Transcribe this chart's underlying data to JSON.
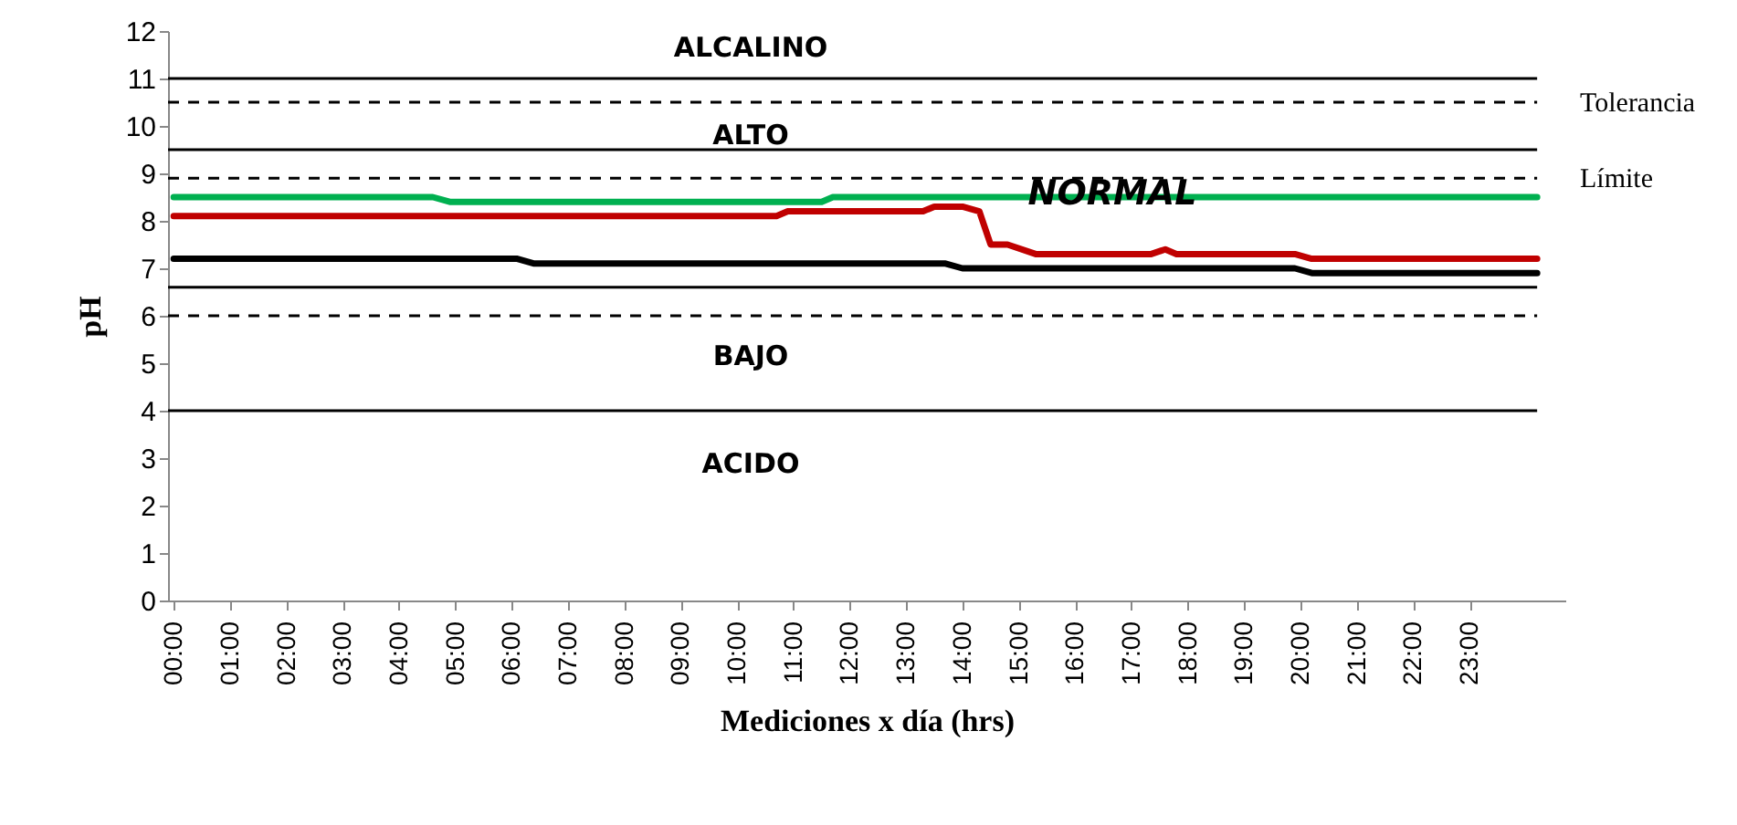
{
  "chart_data": {
    "type": "line",
    "xlabel": "Mediciones x día (hrs)",
    "ylabel": "pH",
    "xlim": [
      -0.1,
      24.7
    ],
    "ylim": [
      0,
      12
    ],
    "yticks": [
      0,
      1,
      2,
      3,
      4,
      5,
      6,
      7,
      8,
      9,
      10,
      11,
      12
    ],
    "xticks": [
      {
        "value": 0,
        "label": "00:00"
      },
      {
        "value": 1,
        "label": "01:00"
      },
      {
        "value": 2,
        "label": "02:00"
      },
      {
        "value": 3,
        "label": "03:00"
      },
      {
        "value": 4,
        "label": "04:00"
      },
      {
        "value": 5,
        "label": "05:00"
      },
      {
        "value": 6,
        "label": "06:00"
      },
      {
        "value": 7,
        "label": "07:00"
      },
      {
        "value": 8,
        "label": "08:00"
      },
      {
        "value": 9,
        "label": "09:00"
      },
      {
        "value": 10,
        "label": "10:00"
      },
      {
        "value": 11,
        "label": "11:00"
      },
      {
        "value": 12,
        "label": "12:00"
      },
      {
        "value": 13,
        "label": "13:00"
      },
      {
        "value": 14,
        "label": "14:00"
      },
      {
        "value": 15,
        "label": "15:00"
      },
      {
        "value": 16,
        "label": "16:00"
      },
      {
        "value": 17,
        "label": "17:00"
      },
      {
        "value": 18,
        "label": "18:00"
      },
      {
        "value": 19,
        "label": "19:00"
      },
      {
        "value": 20,
        "label": "20:00"
      },
      {
        "value": 21,
        "label": "21:00"
      },
      {
        "value": 22,
        "label": "22:00"
      },
      {
        "value": 23,
        "label": "23:00"
      }
    ],
    "grid": false,
    "marker": "none",
    "line_style": "solid",
    "series": [
      {
        "color": "#00b050",
        "x": [
          0,
          4.6,
          4.9,
          11.5,
          11.7,
          24.2
        ],
        "values": [
          8.5,
          8.5,
          8.4,
          8.4,
          8.5,
          8.5
        ]
      },
      {
        "color": "#c00000",
        "x": [
          0,
          10.7,
          10.9,
          13.3,
          13.5,
          14.0,
          14.3,
          14.5,
          14.8,
          15.3,
          17.35,
          17.6,
          17.8,
          19.9,
          20.2,
          24.2
        ],
        "values": [
          8.1,
          8.1,
          8.2,
          8.2,
          8.3,
          8.3,
          8.2,
          7.5,
          7.5,
          7.3,
          7.3,
          7.4,
          7.3,
          7.3,
          7.2,
          7.2
        ]
      },
      {
        "color": "#000000",
        "x": [
          0,
          6.1,
          6.4,
          13.7,
          14.0,
          19.9,
          20.2,
          24.2
        ],
        "values": [
          7.2,
          7.2,
          7.1,
          7.1,
          7.0,
          7.0,
          6.9,
          6.9
        ]
      }
    ],
    "ref_lines": [
      {
        "axis": "y",
        "value": 11,
        "color": "#000000",
        "line_style": "solid"
      },
      {
        "axis": "y",
        "value": 10.5,
        "color": "#000000",
        "line_style": "dashed",
        "label": "Tolerancia"
      },
      {
        "axis": "y",
        "value": 9.5,
        "color": "#000000",
        "line_style": "solid"
      },
      {
        "axis": "y",
        "value": 8.9,
        "color": "#000000",
        "line_style": "dashed",
        "label": "Límite"
      },
      {
        "axis": "y",
        "value": 6.6,
        "color": "#000000",
        "line_style": "solid"
      },
      {
        "axis": "y",
        "value": 6,
        "color": "#000000",
        "line_style": "dashed"
      },
      {
        "axis": "y",
        "value": 4,
        "color": "#000000",
        "line_style": "solid"
      }
    ],
    "annotations": [
      "ALCALINO",
      "ALTO",
      "NORMAL",
      "BAJO",
      "ACIDO"
    ]
  }
}
